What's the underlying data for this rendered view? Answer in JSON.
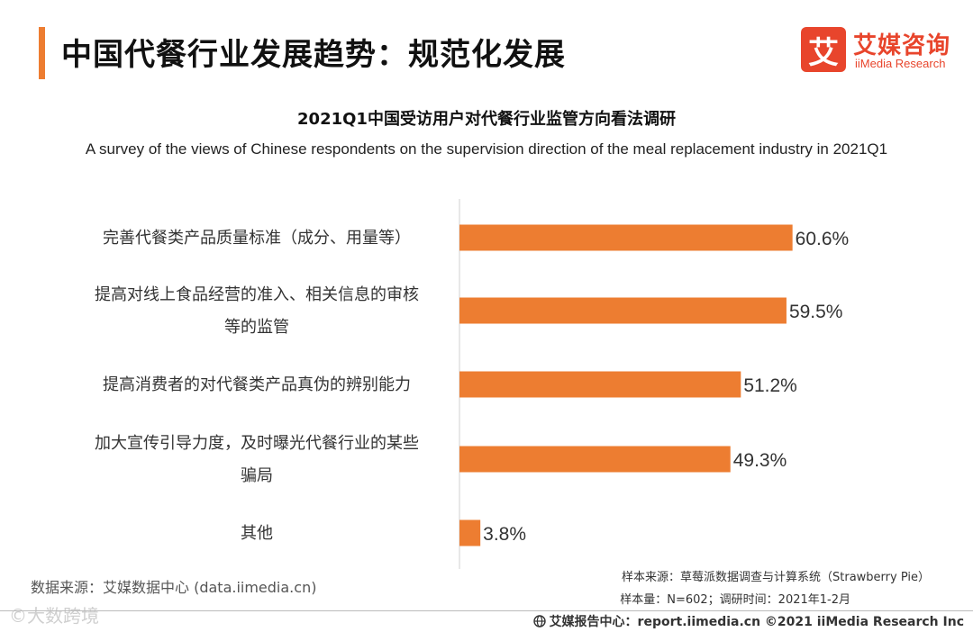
{
  "header": {
    "title": "中国代餐行业发展趋势：规范化发展",
    "logo_mark": "艾",
    "logo_cn": "艾媒咨询",
    "logo_en": "iiMedia Research"
  },
  "chart_data": {
    "type": "bar",
    "orientation": "horizontal",
    "title": "2021Q1中国受访用户对代餐行业监管方向看法调研",
    "subtitle": "A survey of the views of Chinese respondents on the supervision direction of the meal replacement industry in 2021Q1",
    "categories": [
      [
        "完善代餐类产品质量标准（成分、用量等）"
      ],
      [
        "提高对线上食品经营的准入、相关信息的审核",
        "等的监管"
      ],
      [
        "提高消费者的对代餐类产品真伪的辨别能力"
      ],
      [
        "加大宣传引导力度，及时曝光代餐行业的某些",
        "骗局"
      ],
      [
        "其他"
      ]
    ],
    "values": [
      60.6,
      59.5,
      51.2,
      49.3,
      3.8
    ],
    "value_labels": [
      "60.6%",
      "59.5%",
      "51.2%",
      "49.3%",
      "3.8%"
    ],
    "unit": "%",
    "xlim": [
      0,
      100
    ],
    "bar_color": "#ed7d31",
    "grid": false
  },
  "footer": {
    "source": "数据来源：艾媒数据中心 (data.iimedia.cn)",
    "sample_source": "样本来源：草莓派数据调查与计算系统（Strawberry Pie）",
    "sample_size": "样本量：N=602；调研时间：2021年1-2月",
    "report": "艾媒报告中心：report.iimedia.cn  ©2021  iiMedia Research  Inc",
    "watermark": "©大数跨境"
  },
  "colors": {
    "accent": "#ed7d31",
    "brand": "#e8452c"
  }
}
